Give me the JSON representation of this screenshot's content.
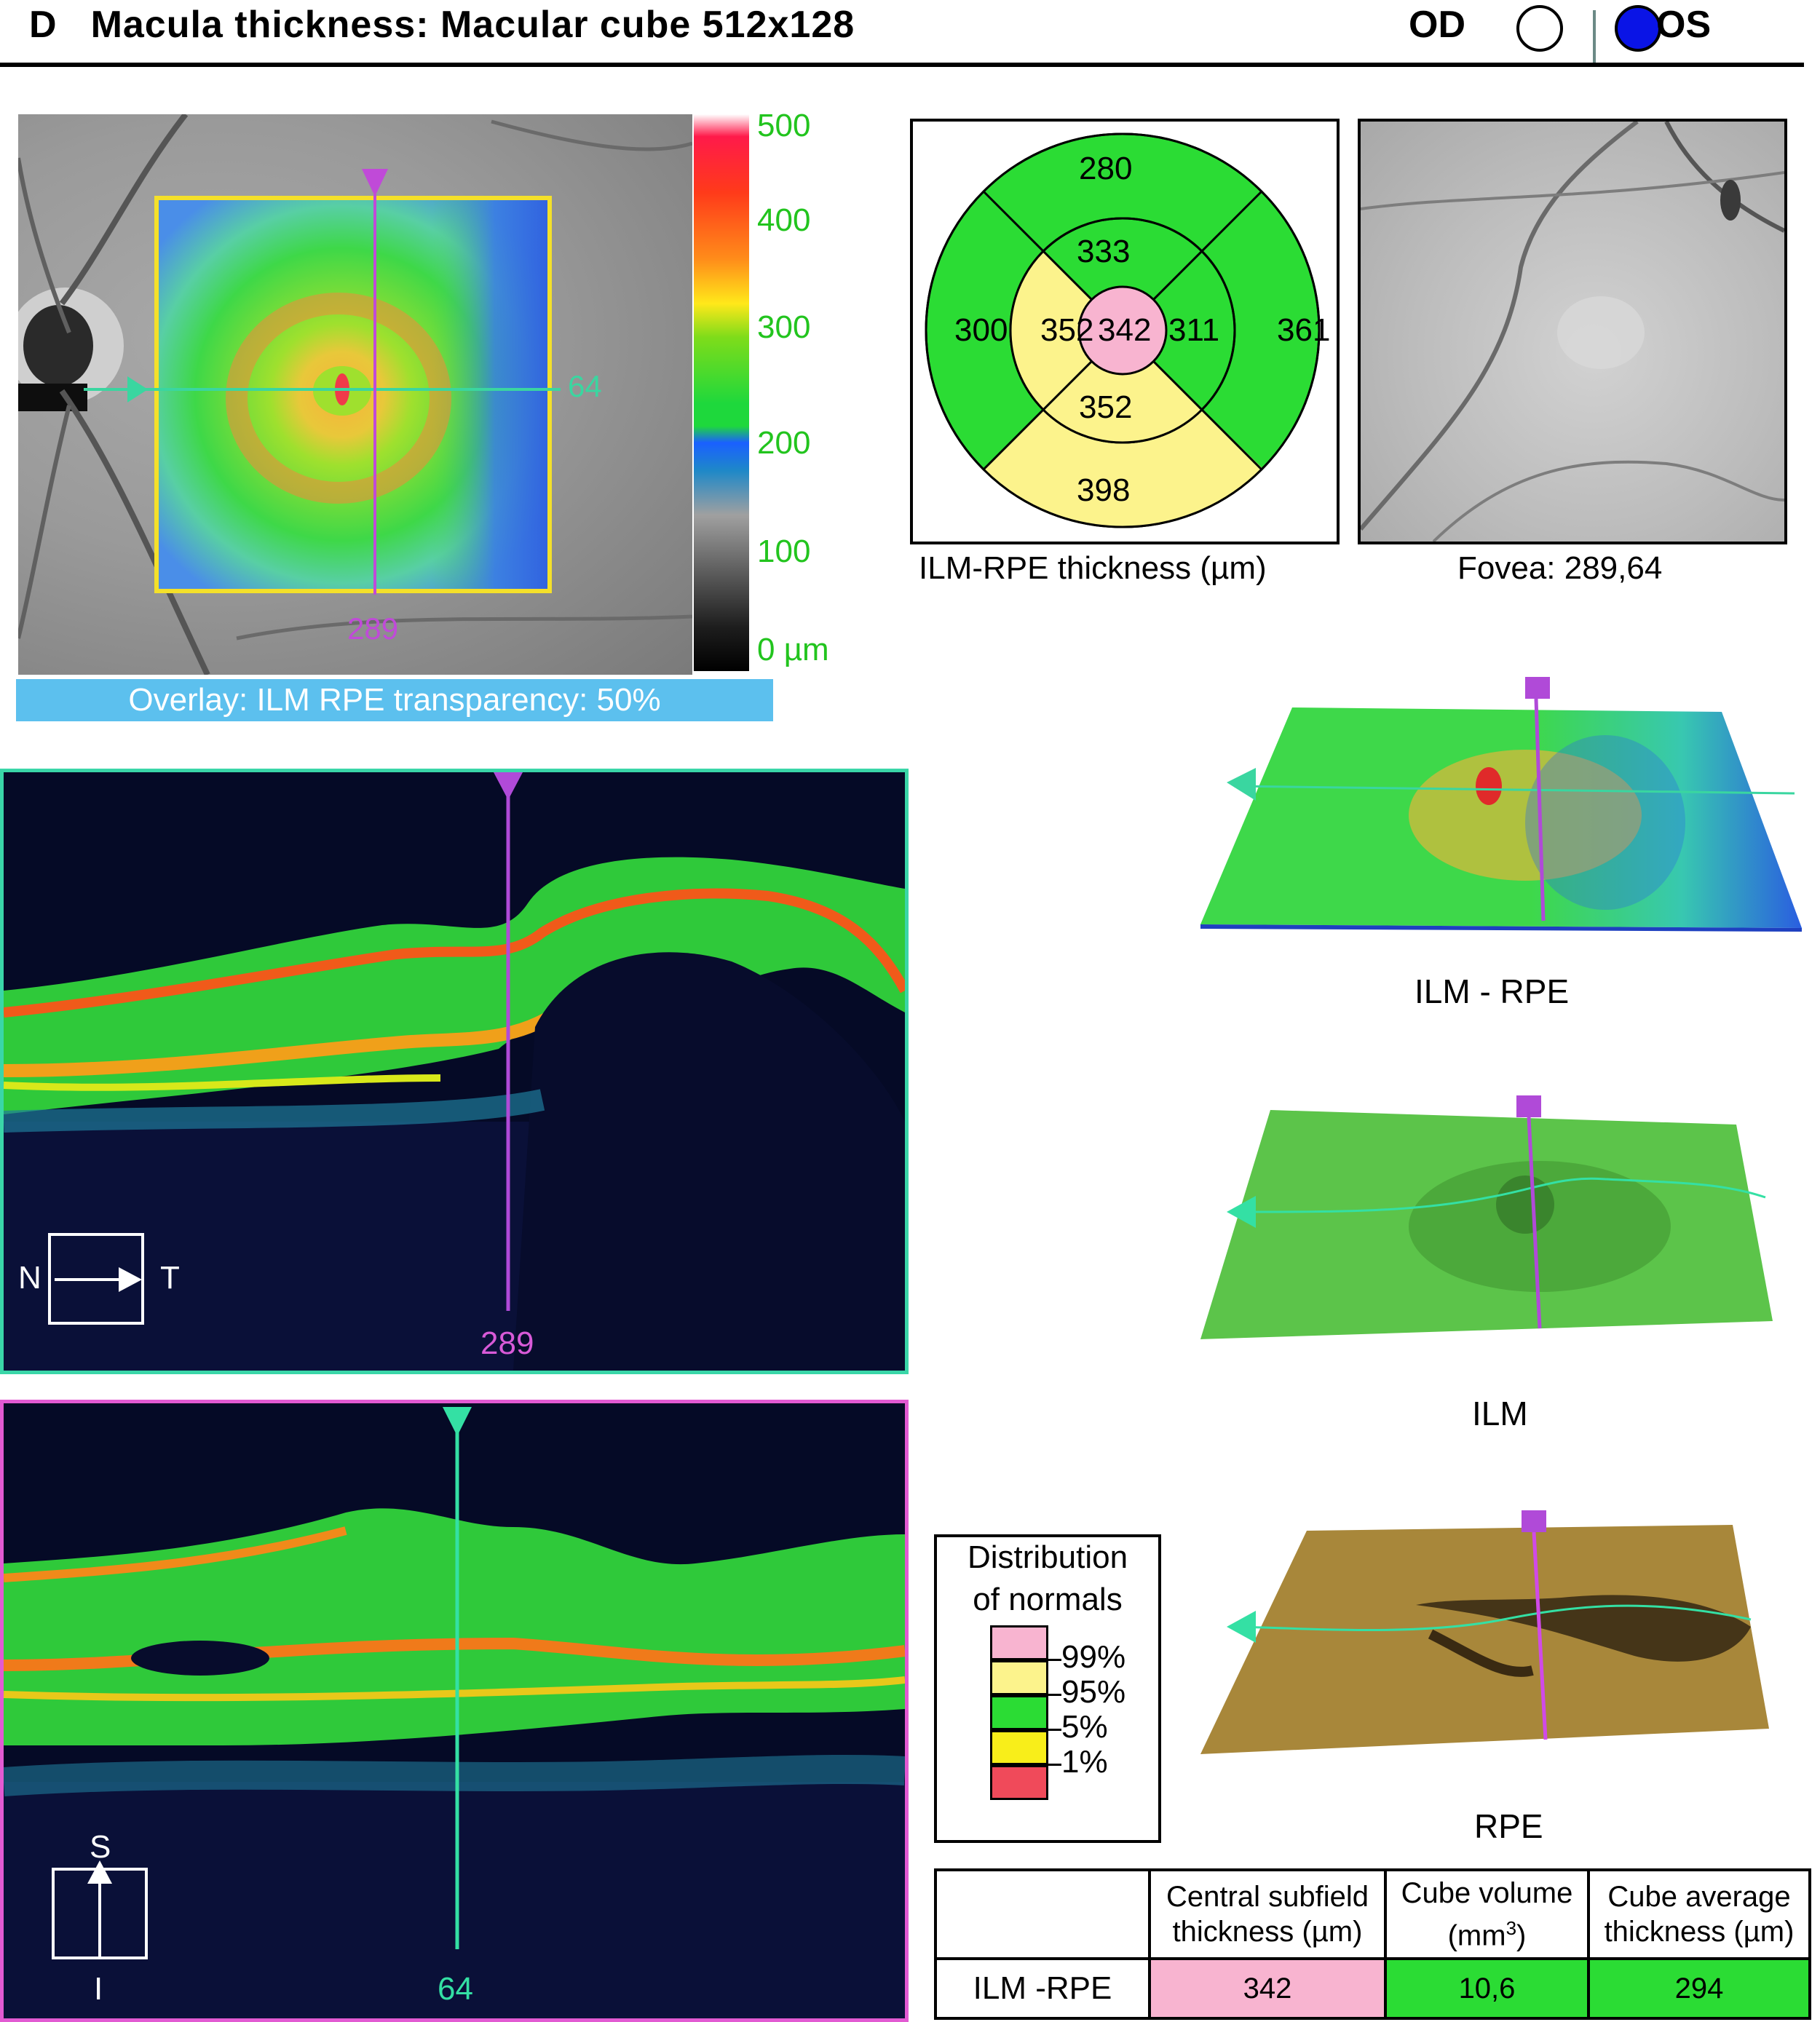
{
  "header": {
    "panel_letter": "D",
    "title": "Macula thickness: Macular cube 512x128",
    "od_label": "OD",
    "os_label": "OS",
    "selected_eye": "OS"
  },
  "fundus": {
    "overlay_label": "Overlay: ILM RPE transparency: 50%",
    "horizontal_marker": "64",
    "vertical_marker": "289"
  },
  "color_scale": {
    "ticks": [
      "500",
      "400",
      "300",
      "200",
      "100",
      "0 µm"
    ]
  },
  "etdrs": {
    "superior_outer": "280",
    "superior_inner": "333",
    "nasal_outer": "300",
    "nasal_inner": "352",
    "center": "342",
    "temporal_inner": "311",
    "temporal_outer": "361",
    "inferior_inner": "352",
    "inferior_outer": "398",
    "caption": "ILM-RPE thickness (µm)"
  },
  "fovea": {
    "caption": "Fovea: 289,64"
  },
  "bscan_horizontal": {
    "position_label": "289",
    "orientation_left": "N",
    "orientation_right": "T"
  },
  "bscan_vertical": {
    "position_label": "64",
    "orientation_top": "S",
    "orientation_bottom": "I"
  },
  "surfaces": {
    "ilm_rpe_caption": "ILM - RPE",
    "ilm_caption": "ILM",
    "rpe_caption": "RPE"
  },
  "legend": {
    "title_line1": "Distribution",
    "title_line2": "of normals",
    "labels": [
      "99%",
      "95%",
      "5%",
      "1%"
    ]
  },
  "summary": {
    "col_central_line1": "Central subfield",
    "col_central_line2": "thickness (µm)",
    "col_volume_line1": "Cube volume",
    "col_volume_line2": "(mm",
    "col_volume_sup": "3",
    "col_volume_close": ")",
    "col_avg_line1": "Cube average",
    "col_avg_line2": "thickness (µm)",
    "row_label": "ILM -RPE",
    "central_value": "342",
    "volume_value": "10,6",
    "average_value": "294"
  },
  "colors": {
    "normal_green": "#2bdc34",
    "borderline_yellow": "#fcf38c",
    "above_99_pink": "#f8b4d0",
    "below_1_red": "#f04a5a",
    "scan_line_magenta": "#b04ad8",
    "scan_line_teal": "#34e0a4"
  }
}
